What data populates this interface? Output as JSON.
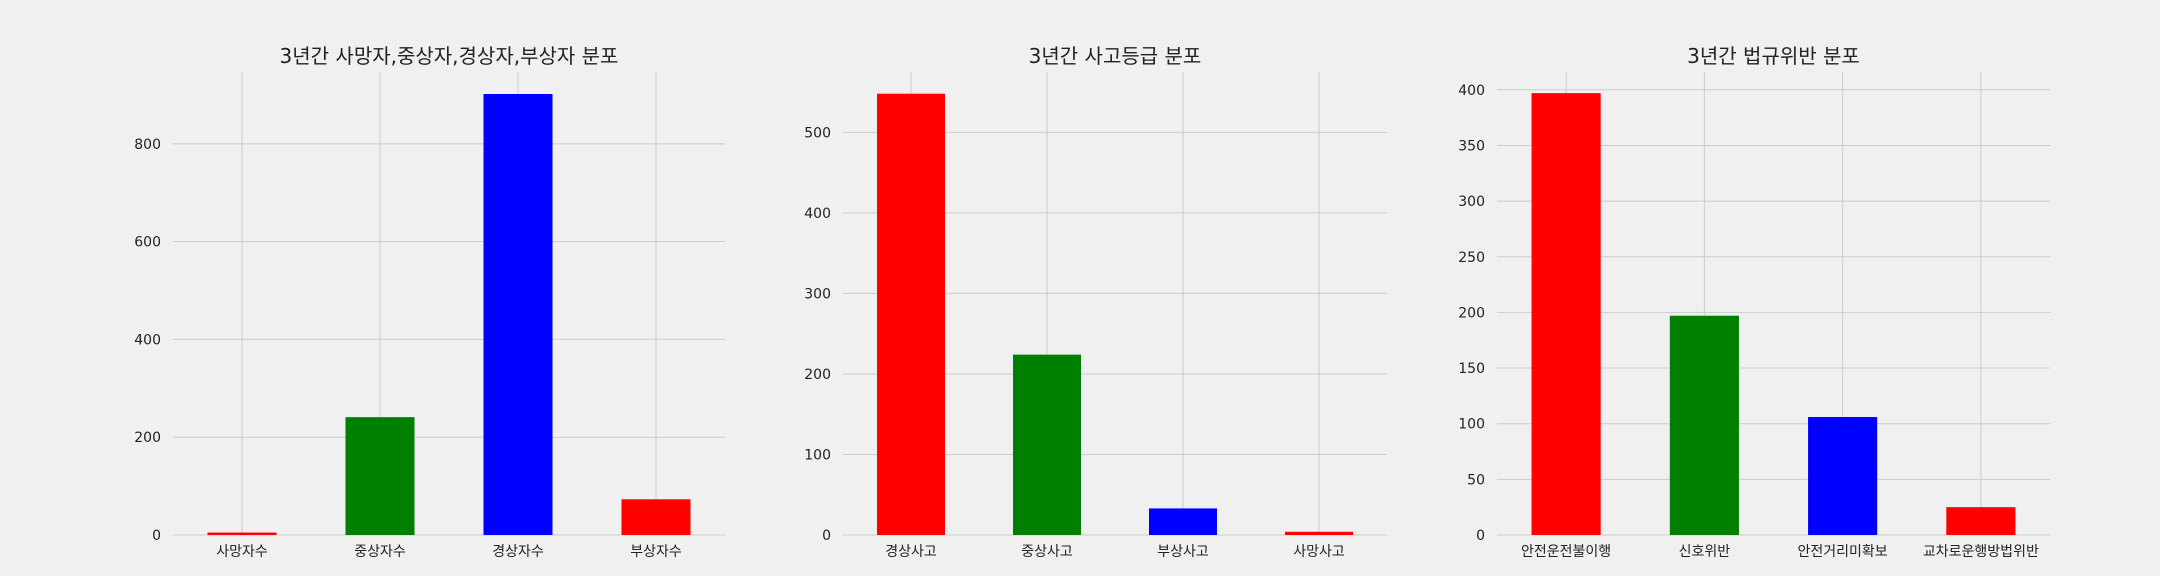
{
  "chart_data": [
    {
      "type": "bar",
      "title": "3년간 사망자,중상자,경상자,부상자 분포",
      "categories": [
        "사망자수",
        "중상자수",
        "경상자수",
        "부상자수"
      ],
      "values": [
        5,
        241,
        902,
        73
      ],
      "colors": [
        "#ff0000",
        "#008000",
        "#0000ff",
        "#ff0000"
      ],
      "xlabel": "",
      "ylabel": "",
      "ylim": [
        0,
        947
      ],
      "yticks": [
        0,
        200,
        400,
        600,
        800
      ],
      "grid": true
    },
    {
      "type": "bar",
      "title": "3년간 사고등급 분포",
      "categories": [
        "경상사고",
        "중상사고",
        "부상사고",
        "사망사고"
      ],
      "values": [
        548,
        224,
        33,
        4
      ],
      "colors": [
        "#ff0000",
        "#008000",
        "#0000ff",
        "#ff0000"
      ],
      "xlabel": "",
      "ylabel": "",
      "ylim": [
        0,
        575
      ],
      "yticks": [
        0,
        100,
        200,
        300,
        400,
        500
      ],
      "grid": true
    },
    {
      "type": "bar",
      "title": "3년간 법규위반 분포",
      "categories": [
        "안전운전불이행",
        "신호위반",
        "안전거리미확보",
        "교차로운행방법위반"
      ],
      "values": [
        397,
        197,
        106,
        25
      ],
      "colors": [
        "#ff0000",
        "#008000",
        "#0000ff",
        "#ff0000"
      ],
      "xlabel": "",
      "ylabel": "",
      "ylim": [
        0,
        416
      ],
      "yticks": [
        0,
        50,
        100,
        150,
        200,
        250,
        300,
        350,
        400
      ],
      "grid": true
    }
  ]
}
